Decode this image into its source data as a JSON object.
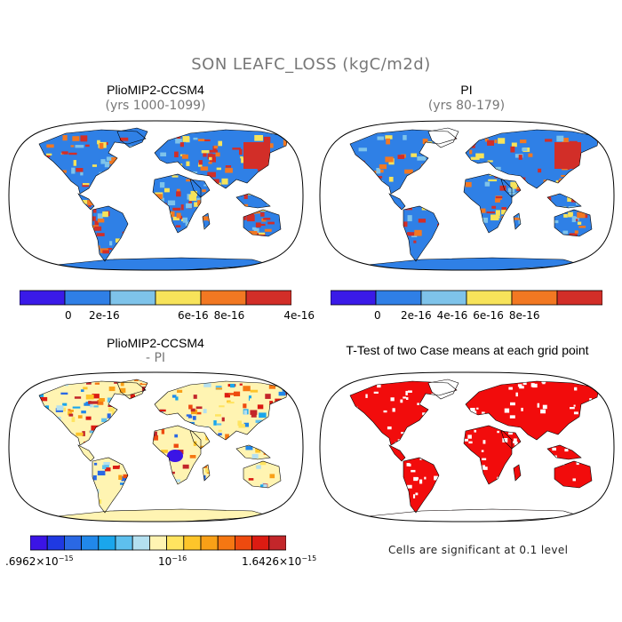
{
  "figure": {
    "main_title": "SON LEAFC_LOSS (kgC/m2d)"
  },
  "panels": {
    "top_left": {
      "title": "PlioMIP2-CCSM4",
      "subtitle": "(yrs 1000-1099)"
    },
    "top_right": {
      "title": "PI",
      "subtitle": "(yrs 80-179)"
    },
    "bottom_left": {
      "title": "PlioMIP2-CCSM4",
      "subtitle": "- PI"
    },
    "bottom_right": {
      "title": "T-Test of two Case means at each grid point"
    }
  },
  "colorbar_abs": {
    "colors": [
      "#3a1ae8",
      "#2f7fe6",
      "#7ec3ea",
      "#f7e35a",
      "#f27822",
      "#d22e28"
    ],
    "labels": [
      "0",
      "2e-16",
      "4e-16",
      "6e-16",
      "8e-16"
    ]
  },
  "colorbar_diff": {
    "colors": [
      "#3b14e6",
      "#1f39e2",
      "#2a68e4",
      "#2188ea",
      "#1aa6ec",
      "#5ec0ee",
      "#b4e0f0",
      "#fff4b2",
      "#ffe460",
      "#fdc52a",
      "#f9a017",
      "#f57712",
      "#ee4a0f",
      "#dc1b12",
      "#c3262a"
    ],
    "labels": [
      ".6962×10",
      "−15",
      "10",
      "−16",
      "1.6426×10",
      "−15"
    ]
  },
  "significance_note": "Cells are significant at 0.1 level",
  "map_colors": {
    "ocean": "#ffffff",
    "outline": "#000000",
    "significant": "#f20c0c",
    "abs_base": "#2f80e6",
    "diff_base": "#fff4b2"
  }
}
